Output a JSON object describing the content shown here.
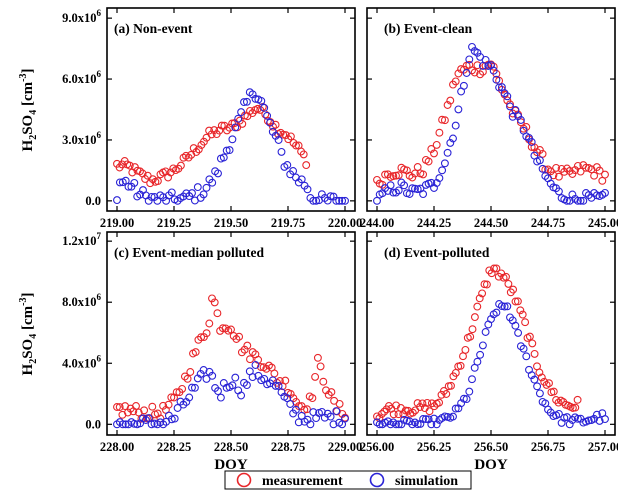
{
  "legend": {
    "measurement": {
      "label": "measurement",
      "color": "#e8262a"
    },
    "simulation": {
      "label": "simulation",
      "color": "#2a23d6"
    }
  },
  "chart_data": [
    {
      "type": "scatter",
      "title": "(a) Non-event",
      "xlabel": "",
      "ylabel": "H2SO4 [cm-3]",
      "xlim": [
        219.0,
        220.0
      ],
      "ylim": [
        -500000.0,
        9500000.0
      ],
      "xticks": [
        "219.00",
        "219.25",
        "219.50",
        "219.75",
        "220.00"
      ],
      "yticks": [
        {
          "value": 0,
          "mant": "0.0",
          "exp": ""
        },
        {
          "value": 3000000.0,
          "mant": "3.0x10",
          "exp": "6"
        },
        {
          "value": 6000000.0,
          "mant": "6.0x10",
          "exp": "6"
        },
        {
          "value": 9000000.0,
          "mant": "9.0x10",
          "exp": "6"
        }
      ],
      "series": [
        {
          "name": "measurement",
          "shape": [
            [
              219.0,
              1.75
            ],
            [
              219.05,
              1.7
            ],
            [
              219.1,
              1.3
            ],
            [
              219.15,
              1.0
            ],
            [
              219.2,
              1.2
            ],
            [
              219.25,
              1.5
            ],
            [
              219.3,
              2.0
            ],
            [
              219.35,
              2.6
            ],
            [
              219.4,
              3.2
            ],
            [
              219.45,
              3.5
            ],
            [
              219.5,
              3.6
            ],
            [
              219.55,
              4.0
            ],
            [
              219.6,
              4.5
            ],
            [
              219.62,
              4.6
            ],
            [
              219.66,
              4.2
            ],
            [
              219.7,
              3.6
            ],
            [
              219.75,
              3.2
            ],
            [
              219.8,
              2.5
            ],
            [
              219.83,
              2.0
            ]
          ],
          "jitter": 0.25,
          "n": 75
        },
        {
          "name": "simulation",
          "shape": [
            [
              219.0,
              0.0
            ],
            [
              219.01,
              0.95
            ],
            [
              219.05,
              0.85
            ],
            [
              219.1,
              0.3
            ],
            [
              219.15,
              0.1
            ],
            [
              219.2,
              0.05
            ],
            [
              219.3,
              0.1
            ],
            [
              219.38,
              0.5
            ],
            [
              219.43,
              1.2
            ],
            [
              219.48,
              2.5
            ],
            [
              219.52,
              3.5
            ],
            [
              219.56,
              4.6
            ],
            [
              219.6,
              5.5
            ],
            [
              219.63,
              5.0
            ],
            [
              219.66,
              4.0
            ],
            [
              219.7,
              3.0
            ],
            [
              219.73,
              2.0
            ],
            [
              219.76,
              1.5
            ],
            [
              219.8,
              1.0
            ],
            [
              219.83,
              0.8
            ],
            [
              219.86,
              0.0
            ],
            [
              220.0,
              0.0
            ]
          ],
          "jitter": 0.35,
          "n": 80
        }
      ]
    },
    {
      "type": "scatter",
      "title": "(b) Event-clean",
      "xlabel": "",
      "ylabel": "",
      "xlim": [
        244.0,
        245.0
      ],
      "ylim": [
        -500000.0,
        9500000.0
      ],
      "xticks": [
        "244.00",
        "244.25",
        "244.50",
        "244.75",
        "245.00"
      ],
      "yticks": [],
      "series": [
        {
          "name": "measurement",
          "shape": [
            [
              244.0,
              0.8
            ],
            [
              244.05,
              1.4
            ],
            [
              244.1,
              1.5
            ],
            [
              244.15,
              1.3
            ],
            [
              244.2,
              1.5
            ],
            [
              244.25,
              2.5
            ],
            [
              244.3,
              4.2
            ],
            [
              244.35,
              6.2
            ],
            [
              244.4,
              6.6
            ],
            [
              244.45,
              6.5
            ],
            [
              244.5,
              6.8
            ],
            [
              244.55,
              5.5
            ],
            [
              244.6,
              4.3
            ],
            [
              244.65,
              3.5
            ],
            [
              244.7,
              2.5
            ],
            [
              244.75,
              1.6
            ],
            [
              244.8,
              1.3
            ],
            [
              244.85,
              1.3
            ],
            [
              244.9,
              1.6
            ],
            [
              244.95,
              1.5
            ],
            [
              245.0,
              1.2
            ]
          ],
          "jitter": 0.3,
          "n": 85
        },
        {
          "name": "simulation",
          "shape": [
            [
              244.0,
              0.0
            ],
            [
              244.05,
              0.5
            ],
            [
              244.1,
              0.7
            ],
            [
              244.15,
              0.4
            ],
            [
              244.2,
              0.5
            ],
            [
              244.25,
              0.8
            ],
            [
              244.3,
              2.0
            ],
            [
              244.35,
              4.0
            ],
            [
              244.4,
              7.0
            ],
            [
              244.42,
              7.5
            ],
            [
              244.47,
              6.8
            ],
            [
              244.5,
              6.6
            ],
            [
              244.55,
              5.5
            ],
            [
              244.6,
              4.3
            ],
            [
              244.65,
              3.5
            ],
            [
              244.7,
              2.0
            ],
            [
              244.75,
              1.0
            ],
            [
              244.8,
              0.3
            ],
            [
              244.85,
              0.1
            ],
            [
              244.9,
              0.1
            ],
            [
              245.0,
              0.1
            ]
          ],
          "jitter": 0.3,
          "n": 85
        }
      ]
    },
    {
      "type": "scatter",
      "title": "(c) Event-median polluted",
      "xlabel": "DOY",
      "ylabel": "H2SO4 [cm-3]",
      "xlim": [
        228.0,
        229.0
      ],
      "ylim": [
        -700000.0,
        12600000.0
      ],
      "xticks": [
        "228.00",
        "228.25",
        "228.50",
        "228.75",
        "229.00"
      ],
      "yticks": [
        {
          "value": 0,
          "mant": "0.0",
          "exp": ""
        },
        {
          "value": 4000000.0,
          "mant": "4.0x10",
          "exp": "6"
        },
        {
          "value": 8000000.0,
          "mant": "8.0x10",
          "exp": "6"
        },
        {
          "value": 12000000.0,
          "mant": "1.2x10",
          "exp": "7"
        }
      ],
      "series": [
        {
          "name": "measurement",
          "shape": [
            [
              228.0,
              1.0
            ],
            [
              228.05,
              0.9
            ],
            [
              228.1,
              0.8
            ],
            [
              228.15,
              0.7
            ],
            [
              228.2,
              0.8
            ],
            [
              228.25,
              1.5
            ],
            [
              228.3,
              3.0
            ],
            [
              228.35,
              5.0
            ],
            [
              228.4,
              6.5
            ],
            [
              228.42,
              8.5
            ],
            [
              228.45,
              6.5
            ],
            [
              228.5,
              6.5
            ],
            [
              228.55,
              5.0
            ],
            [
              228.6,
              4.5
            ],
            [
              228.65,
              4.0
            ],
            [
              228.7,
              3.0
            ],
            [
              228.75,
              2.5
            ],
            [
              228.8,
              1.2
            ],
            [
              228.85,
              1.5
            ],
            [
              228.88,
              4.0
            ],
            [
              228.92,
              2.5
            ],
            [
              228.96,
              1.0
            ],
            [
              229.0,
              0.8
            ]
          ],
          "jitter": 0.45,
          "n": 85
        },
        {
          "name": "simulation",
          "shape": [
            [
              228.0,
              0.0
            ],
            [
              228.1,
              0.0
            ],
            [
              228.2,
              0.1
            ],
            [
              228.25,
              0.4
            ],
            [
              228.3,
              1.5
            ],
            [
              228.35,
              2.5
            ],
            [
              228.4,
              3.5
            ],
            [
              228.45,
              2.0
            ],
            [
              228.5,
              3.0
            ],
            [
              228.55,
              2.3
            ],
            [
              228.6,
              3.5
            ],
            [
              228.65,
              3.0
            ],
            [
              228.7,
              2.5
            ],
            [
              228.75,
              1.2
            ],
            [
              228.8,
              0.5
            ],
            [
              228.85,
              0.3
            ],
            [
              228.9,
              0.5
            ],
            [
              228.95,
              0.4
            ],
            [
              229.0,
              0.5
            ]
          ],
          "jitter": 0.5,
          "n": 80
        }
      ]
    },
    {
      "type": "scatter",
      "title": "(d) Event-polluted",
      "xlabel": "DOY",
      "ylabel": "",
      "xlim": [
        256.0,
        257.0
      ],
      "ylim": [
        -700000.0,
        12600000.0
      ],
      "xticks": [
        "256.00",
        "256.25",
        "256.50",
        "256.75",
        "257.00"
      ],
      "yticks": [],
      "series": [
        {
          "name": "measurement",
          "shape": [
            [
              256.0,
              0.6
            ],
            [
              256.05,
              1.0
            ],
            [
              256.1,
              1.0
            ],
            [
              256.15,
              1.0
            ],
            [
              256.2,
              1.1
            ],
            [
              256.25,
              1.2
            ],
            [
              256.3,
              2.0
            ],
            [
              256.35,
              3.5
            ],
            [
              256.4,
              5.5
            ],
            [
              256.45,
              8.0
            ],
            [
              256.5,
              10.2
            ],
            [
              256.55,
              9.8
            ],
            [
              256.6,
              8.5
            ],
            [
              256.65,
              6.5
            ],
            [
              256.7,
              4.0
            ],
            [
              256.75,
              2.5
            ],
            [
              256.8,
              1.5
            ],
            [
              256.85,
              1.2
            ],
            [
              256.88,
              1.3
            ]
          ],
          "jitter": 0.35,
          "n": 85
        },
        {
          "name": "simulation",
          "shape": [
            [
              256.0,
              0.0
            ],
            [
              256.15,
              0.0
            ],
            [
              256.25,
              0.1
            ],
            [
              256.3,
              0.3
            ],
            [
              256.35,
              0.8
            ],
            [
              256.4,
              2.0
            ],
            [
              256.45,
              4.5
            ],
            [
              256.48,
              6.0
            ],
            [
              256.52,
              7.5
            ],
            [
              256.57,
              7.8
            ],
            [
              256.6,
              6.5
            ],
            [
              256.65,
              4.5
            ],
            [
              256.7,
              2.5
            ],
            [
              256.75,
              1.0
            ],
            [
              256.8,
              0.4
            ],
            [
              256.85,
              0.2
            ],
            [
              256.9,
              0.2
            ],
            [
              256.95,
              0.4
            ],
            [
              257.0,
              0.5
            ]
          ],
          "jitter": 0.3,
          "n": 85
        }
      ]
    }
  ]
}
